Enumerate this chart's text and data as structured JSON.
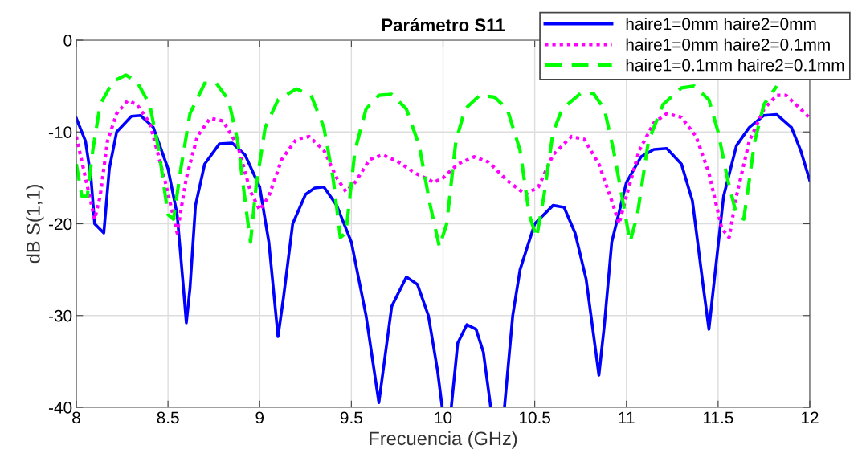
{
  "chart_data": {
    "type": "line",
    "title": "Parámetro S11",
    "xlabel": "Frecuencia (GHz)",
    "ylabel": "dB S(1,1)",
    "xlim": [
      8,
      12
    ],
    "ylim": [
      -40,
      0
    ],
    "xticks": [
      8,
      8.5,
      9,
      9.5,
      10,
      10.5,
      11,
      11.5,
      12
    ],
    "yticks": [
      -40,
      -30,
      -20,
      -10,
      0
    ],
    "grid": true,
    "legend": "top right",
    "series": [
      {
        "name": "haire1=0mm haire2=0mm",
        "color": "#0000ff",
        "line_style": "solid",
        "x": [
          8.0,
          8.05,
          8.08,
          8.1,
          8.15,
          8.18,
          8.22,
          8.3,
          8.35,
          8.42,
          8.5,
          8.55,
          8.58,
          8.6,
          8.62,
          8.65,
          8.7,
          8.78,
          8.85,
          8.92,
          9.0,
          9.05,
          9.1,
          9.13,
          9.18,
          9.25,
          9.3,
          9.35,
          9.42,
          9.5,
          9.58,
          9.65,
          9.68,
          9.72,
          9.8,
          9.86,
          9.92,
          9.97,
          9.995,
          10.02,
          10.045,
          10.08,
          10.13,
          10.18,
          10.22,
          10.26,
          10.3,
          10.335,
          10.38,
          10.42,
          10.5,
          10.6,
          10.66,
          10.72,
          10.78,
          10.82,
          10.85,
          10.88,
          10.92,
          11.0,
          11.08,
          11.15,
          11.22,
          11.3,
          11.36,
          11.42,
          11.45,
          11.48,
          11.53,
          11.6,
          11.67,
          11.75,
          11.82,
          11.9,
          11.95,
          12.0
        ],
        "values": [
          -8.5,
          -11,
          -15,
          -20,
          -21,
          -14,
          -10,
          -8.3,
          -8.2,
          -9.5,
          -14,
          -19,
          -26,
          -30.8,
          -27,
          -18,
          -13.5,
          -11.3,
          -11.2,
          -12.5,
          -16,
          -22,
          -32.3,
          -28,
          -20,
          -16.8,
          -16.1,
          -16,
          -18,
          -22,
          -30,
          -39.5,
          -35,
          -29,
          -25.8,
          -26.6,
          -30,
          -36,
          -40,
          null,
          -40,
          -33,
          -31,
          -31.5,
          -34,
          -40,
          null,
          -40,
          -30,
          -25,
          -20,
          -18,
          -18.2,
          -21,
          -26,
          -32,
          -36.5,
          -31,
          -22,
          -15.5,
          -12.7,
          -11.9,
          -11.8,
          -13.5,
          -17.5,
          -27,
          -31.5,
          -26,
          -17,
          -11.5,
          -9.5,
          -8.2,
          -8.1,
          -9.5,
          -12,
          -15.3
        ]
      },
      {
        "name": "haire1=0mm haire2=0.1mm",
        "color": "#ff00ff",
        "line_style": "dotted",
        "x": [
          8.0,
          8.05,
          8.1,
          8.13,
          8.17,
          8.22,
          8.28,
          8.33,
          8.4,
          8.48,
          8.55,
          8.6,
          8.66,
          8.73,
          8.8,
          8.88,
          8.95,
          9.0,
          9.05,
          9.12,
          9.2,
          9.27,
          9.35,
          9.42,
          9.47,
          9.52,
          9.6,
          9.67,
          9.75,
          9.85,
          9.95,
          10.0,
          10.08,
          10.17,
          10.25,
          10.35,
          10.45,
          10.52,
          10.6,
          10.7,
          10.77,
          10.85,
          10.92,
          10.96,
          11.0,
          11.07,
          11.15,
          11.22,
          11.3,
          11.38,
          11.45,
          11.52,
          11.56,
          11.6,
          11.67,
          11.75,
          11.82,
          11.87,
          11.95,
          12.0
        ],
        "values": [
          -10.5,
          -15,
          -19.5,
          -17,
          -11,
          -8,
          -6.6,
          -7,
          -9,
          -15,
          -21,
          -15,
          -10.5,
          -8.5,
          -8.8,
          -11.5,
          -16.5,
          -18.5,
          -17,
          -13,
          -10.8,
          -10.5,
          -12,
          -15,
          -16.5,
          -15.5,
          -13,
          -12.5,
          -13.2,
          -14.5,
          -15.5,
          -15,
          -13.5,
          -12.7,
          -13.3,
          -15.3,
          -16.8,
          -16,
          -12.5,
          -10.5,
          -10.8,
          -13.5,
          -17.5,
          -20,
          -17,
          -12,
          -9,
          -8,
          -8.4,
          -10.5,
          -14.5,
          -20.5,
          -21.5,
          -17,
          -11,
          -7.5,
          -6,
          -6,
          -7.5,
          -8.5
        ]
      },
      {
        "name": "haire1=0.1mm haire2=0.1mm",
        "color": "#00ff00",
        "line_style": "dashed",
        "x": [
          8.0,
          8.03,
          8.06,
          8.09,
          8.13,
          8.2,
          8.27,
          8.33,
          8.4,
          8.45,
          8.5,
          8.53,
          8.57,
          8.62,
          8.7,
          8.76,
          8.83,
          8.88,
          8.93,
          8.95,
          8.98,
          9.03,
          9.1,
          9.2,
          9.28,
          9.35,
          9.4,
          9.44,
          9.47,
          9.52,
          9.58,
          9.65,
          9.72,
          9.8,
          9.87,
          9.93,
          9.98,
          10.02,
          10.07,
          10.12,
          10.2,
          10.28,
          10.35,
          10.42,
          10.47,
          10.51,
          10.55,
          10.6,
          10.65,
          10.75,
          10.82,
          10.88,
          10.93,
          10.98,
          11.02,
          11.06,
          11.12,
          11.2,
          11.3,
          11.37,
          11.45,
          11.5,
          11.55,
          11.6,
          11.64,
          11.7,
          11.75,
          11.82
        ],
        "values": [
          -13.5,
          -17,
          -17,
          -12,
          -7,
          -4.5,
          -3.8,
          -4.5,
          -7,
          -12,
          -19,
          -19.5,
          -14,
          -8,
          -4.7,
          -4.6,
          -6.5,
          -11,
          -19,
          -22,
          -16,
          -9.5,
          -6.5,
          -5.3,
          -6,
          -9.5,
          -15,
          -21.5,
          -21,
          -12,
          -7.5,
          -6,
          -5.9,
          -7.5,
          -11.5,
          -18,
          -22.5,
          -20,
          -11,
          -7.5,
          -6,
          -6.2,
          -7.5,
          -12,
          -19,
          -21.5,
          -17,
          -10,
          -7.5,
          -5.8,
          -5.8,
          -7.5,
          -12,
          -17.5,
          -22,
          -19,
          -11,
          -7,
          -5.2,
          -5,
          -6.5,
          -10,
          -15,
          -19,
          -19.5,
          -11,
          -7,
          -5
        ]
      }
    ]
  }
}
